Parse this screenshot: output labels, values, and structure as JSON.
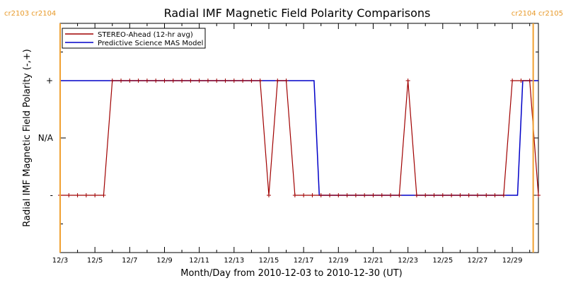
{
  "chart_data": {
    "type": "line",
    "title": "Radial IMF Magnetic Field Polarity Comparisons",
    "xlabel": "Month/Day from 2010-12-03 to 2010-12-30 (UT)",
    "ylabel": "Radial IMF Magnetic Field Polarity (-,+)",
    "x_tick_labels": [
      "12/3",
      "12/5",
      "12/7",
      "12/9",
      "12/11",
      "12/13",
      "12/15",
      "12/17",
      "12/19",
      "12/21",
      "12/23",
      "12/25",
      "12/27",
      "12/29"
    ],
    "y_tick_labels": [
      "+",
      "N/A",
      "-"
    ],
    "xlim": [
      0,
      27.5
    ],
    "ylim": [
      -2,
      2
    ],
    "legend_position": "top-left",
    "colors": {
      "stereo": "#a00000",
      "model": "#0000c8",
      "carrington": "#f0a030"
    },
    "carrington_labels": {
      "left": "cr2103 cr2104",
      "right": "cr2104 cr2105"
    },
    "carrington_lines_x": [
      0,
      27.2
    ],
    "series": [
      {
        "name": "STEREO-Ahead (12-hr avg)",
        "x": [
          0,
          0.5,
          1,
          1.5,
          2,
          2.5,
          3,
          3.5,
          4,
          4.5,
          5,
          5.5,
          6,
          6.5,
          7,
          7.5,
          8,
          8.5,
          9,
          9.5,
          10,
          10.5,
          11,
          11.5,
          12,
          12.5,
          13,
          13.5,
          14,
          14.5,
          15,
          15.5,
          16,
          16.5,
          17,
          17.5,
          18,
          18.5,
          19,
          19.5,
          20,
          20.5,
          21,
          21.5,
          22,
          22.5,
          23,
          23.5,
          24,
          24.5,
          25,
          25.5,
          26,
          26.5,
          27,
          27.5
        ],
        "values": [
          -1,
          -1,
          -1,
          -1,
          -1,
          -1,
          1,
          1,
          1,
          1,
          1,
          1,
          1,
          1,
          1,
          1,
          1,
          1,
          1,
          1,
          1,
          1,
          1,
          1,
          -1,
          1,
          1,
          -1,
          -1,
          -1,
          -1,
          -1,
          -1,
          -1,
          -1,
          -1,
          -1,
          -1,
          -1,
          -1,
          1,
          -1,
          -1,
          -1,
          -1,
          -1,
          -1,
          -1,
          -1,
          -1,
          -1,
          -1,
          1,
          1,
          1,
          -1
        ]
      },
      {
        "name": "Predictive Science MAS Model",
        "steps": [
          {
            "x0": 0,
            "x1": 14.6,
            "y": 1
          },
          {
            "x0": 14.9,
            "x1": 26.3,
            "y": -1
          },
          {
            "x0": 26.6,
            "x1": 27.5,
            "y": 1
          }
        ]
      }
    ]
  }
}
